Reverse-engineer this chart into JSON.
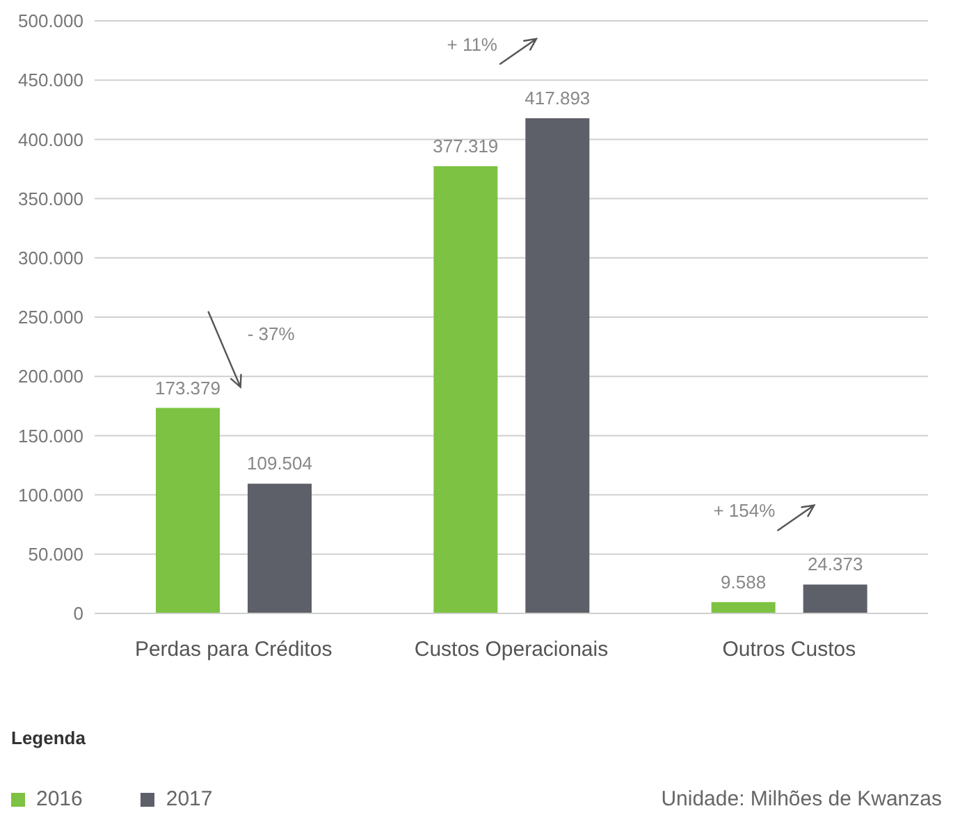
{
  "chart_data": {
    "type": "bar",
    "categories": [
      "Perdas para Créditos",
      "Custos Operacionais",
      "Outros Custos"
    ],
    "series": [
      {
        "name": "2016",
        "color": "#7dc242",
        "values": [
          173379,
          377319,
          9588
        ],
        "value_labels": [
          "173.379",
          "377.319",
          "9.588"
        ]
      },
      {
        "name": "2017",
        "color": "#5d6068",
        "values": [
          109504,
          417893,
          24373
        ],
        "value_labels": [
          "109.504",
          "417.893",
          "24.373"
        ]
      }
    ],
    "ylim": [
      0,
      500000
    ],
    "yticks": [
      {
        "value": 0,
        "label": "0"
      },
      {
        "value": 50000,
        "label": "50.000"
      },
      {
        "value": 100000,
        "label": "100.000"
      },
      {
        "value": 150000,
        "label": "150.000"
      },
      {
        "value": 200000,
        "label": "200.000"
      },
      {
        "value": 250000,
        "label": "250.000"
      },
      {
        "value": 300000,
        "label": "300.000"
      },
      {
        "value": 350000,
        "label": "350.000"
      },
      {
        "value": 400000,
        "label": "400.000"
      },
      {
        "value": 450000,
        "label": "450.000"
      },
      {
        "value": 500000,
        "label": "500.000"
      }
    ],
    "grid": "y",
    "legend": "bottom left",
    "legend_title": "Legenda",
    "annotations": [
      "- 37%",
      "+ 11%",
      "+ 154%",
      "Unidade: Milhões de Kwanzas"
    ]
  }
}
